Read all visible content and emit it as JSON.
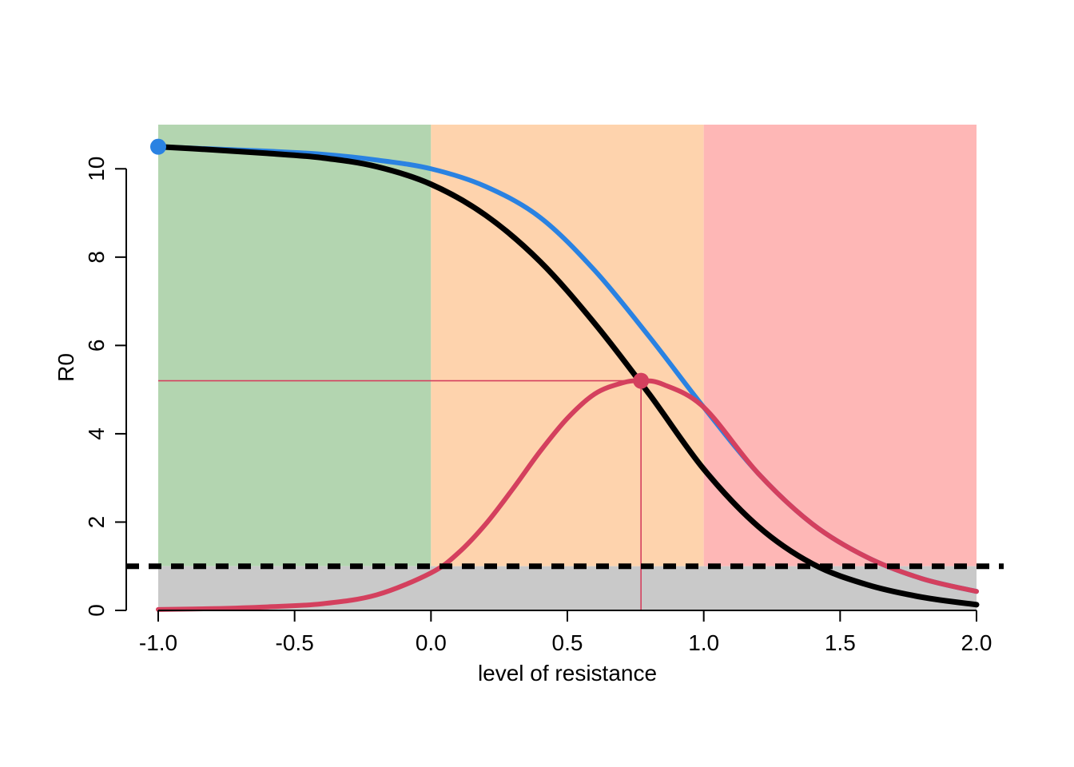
{
  "chart_data": {
    "type": "line",
    "title": "",
    "xlabel": "level of resistance",
    "ylabel": "R0",
    "xlim": [
      -1.0,
      2.0
    ],
    "ylim": [
      0,
      11
    ],
    "x_ticks": [
      "-1.0",
      "-0.5",
      "0.0",
      "0.5",
      "1.0",
      "1.5",
      "2.0"
    ],
    "y_ticks": [
      "0",
      "2",
      "4",
      "6",
      "8",
      "10"
    ],
    "grid": false,
    "legend": "none",
    "background_bands": [
      {
        "x_from": -1.0,
        "x_to": 0.0,
        "y_from": 1,
        "y_to": 11,
        "color": "#b3d5b0"
      },
      {
        "x_from": 0.0,
        "x_to": 1.0,
        "y_from": 1,
        "y_to": 11,
        "color": "#fed3ad"
      },
      {
        "x_from": 1.0,
        "x_to": 2.0,
        "y_from": 1,
        "y_to": 11,
        "color": "#feb7b6"
      },
      {
        "x_from": -1.0,
        "x_to": 2.0,
        "y_from": 0,
        "y_to": 1,
        "color": "#c9c9c9"
      }
    ],
    "reference_line": {
      "y": 1,
      "style": "dashed",
      "color": "#000000"
    },
    "series": [
      {
        "color": "#2a82e2",
        "style": "solid",
        "x": [
          -1.0,
          -0.8,
          -0.6,
          -0.4,
          -0.2,
          0.0,
          0.2,
          0.4,
          0.6,
          0.8,
          1.0,
          1.2,
          1.4,
          1.6,
          1.8,
          2.0
        ],
        "y": [
          10.5,
          10.45,
          10.4,
          10.33,
          10.2,
          10.0,
          9.6,
          8.9,
          7.7,
          6.2,
          4.6,
          3.1,
          1.95,
          1.2,
          0.72,
          0.43
        ]
      },
      {
        "color": "#000000",
        "style": "solid",
        "x": [
          -1.0,
          -0.8,
          -0.6,
          -0.4,
          -0.2,
          0.0,
          0.2,
          0.4,
          0.6,
          0.8,
          1.0,
          1.2,
          1.4,
          1.6,
          1.8,
          2.0
        ],
        "y": [
          10.5,
          10.43,
          10.35,
          10.25,
          10.05,
          9.65,
          8.95,
          7.9,
          6.5,
          4.9,
          3.2,
          1.9,
          1.05,
          0.58,
          0.3,
          0.13
        ]
      },
      {
        "color": "#d4405e",
        "style": "solid",
        "x": [
          -1.0,
          -0.8,
          -0.6,
          -0.4,
          -0.2,
          0.0,
          0.1,
          0.2,
          0.3,
          0.4,
          0.5,
          0.6,
          0.7,
          0.77,
          0.85,
          1.0,
          1.2,
          1.4,
          1.6,
          1.8,
          2.0
        ],
        "y": [
          0.02,
          0.04,
          0.08,
          0.15,
          0.35,
          0.85,
          1.3,
          1.95,
          2.75,
          3.6,
          4.35,
          4.9,
          5.15,
          5.2,
          5.12,
          4.6,
          3.1,
          1.95,
          1.2,
          0.72,
          0.43
        ]
      }
    ],
    "markers": [
      {
        "x": -1.0,
        "y": 10.5,
        "color": "#2a82e2"
      },
      {
        "x": 0.77,
        "y": 5.2,
        "color": "#d4405e"
      }
    ],
    "guide_lines": {
      "x": 0.77,
      "y": 5.2,
      "color": "#d4405e"
    }
  }
}
